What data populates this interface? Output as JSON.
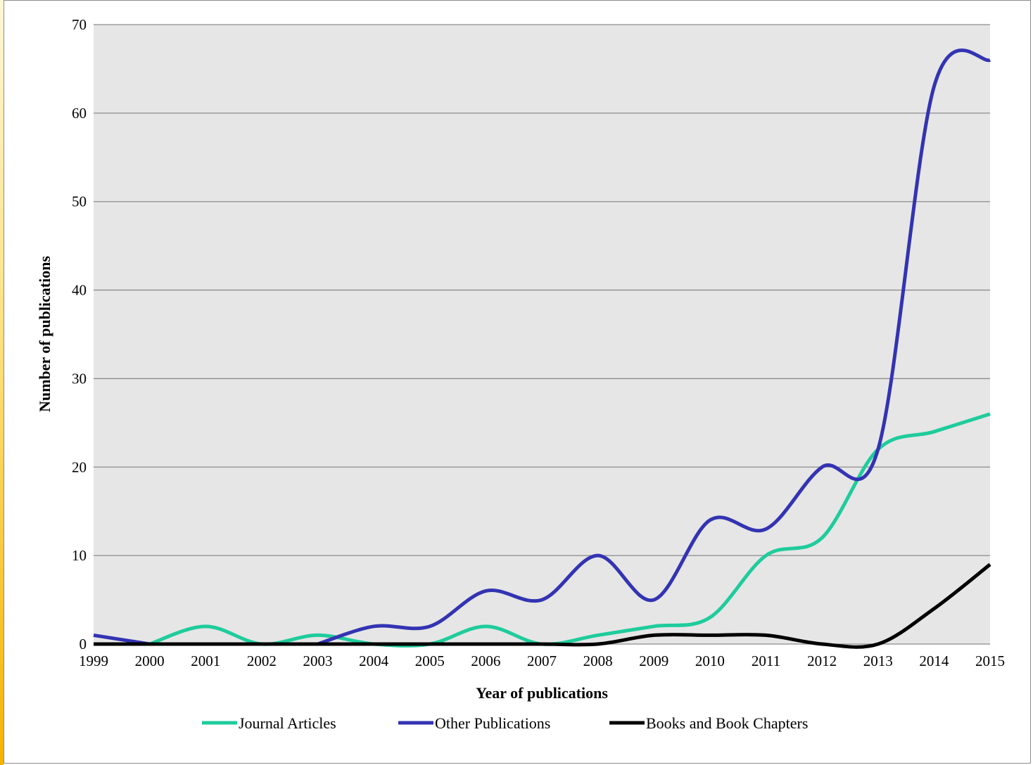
{
  "chart_data": {
    "type": "line",
    "title": "",
    "xlabel": "Year of publications",
    "ylabel": "Number of publications",
    "x": [
      "1999",
      "2000",
      "2001",
      "2002",
      "2003",
      "2004",
      "2005",
      "2006",
      "2007",
      "2008",
      "2009",
      "2010",
      "2011",
      "2012",
      "2013",
      "2014",
      "2015"
    ],
    "ylim": [
      0,
      70
    ],
    "yticks": [
      0,
      10,
      20,
      30,
      40,
      50,
      60,
      70
    ],
    "grid": true,
    "legend_position": "bottom",
    "smooth": true,
    "series": [
      {
        "name": "Journal Articles",
        "color": "#1fcc9c",
        "values": [
          null,
          0,
          2,
          0,
          1,
          0,
          0,
          2,
          0,
          1,
          2,
          3,
          10,
          12,
          22,
          24,
          26
        ]
      },
      {
        "name": "Other Publications",
        "color": "#3333b3",
        "values": [
          1,
          0,
          null,
          null,
          0,
          2,
          2,
          6,
          5,
          10,
          5,
          14,
          13,
          20,
          22,
          63,
          66
        ]
      },
      {
        "name": "Books and Book Chapters",
        "color": "#000000",
        "values": [
          0,
          0,
          0,
          0,
          0,
          0,
          0,
          0,
          0,
          0,
          1,
          1,
          1,
          0,
          0,
          4,
          9
        ]
      }
    ],
    "plot_background": "#e6e6e6",
    "gridline_color": "#8c8c8c"
  }
}
